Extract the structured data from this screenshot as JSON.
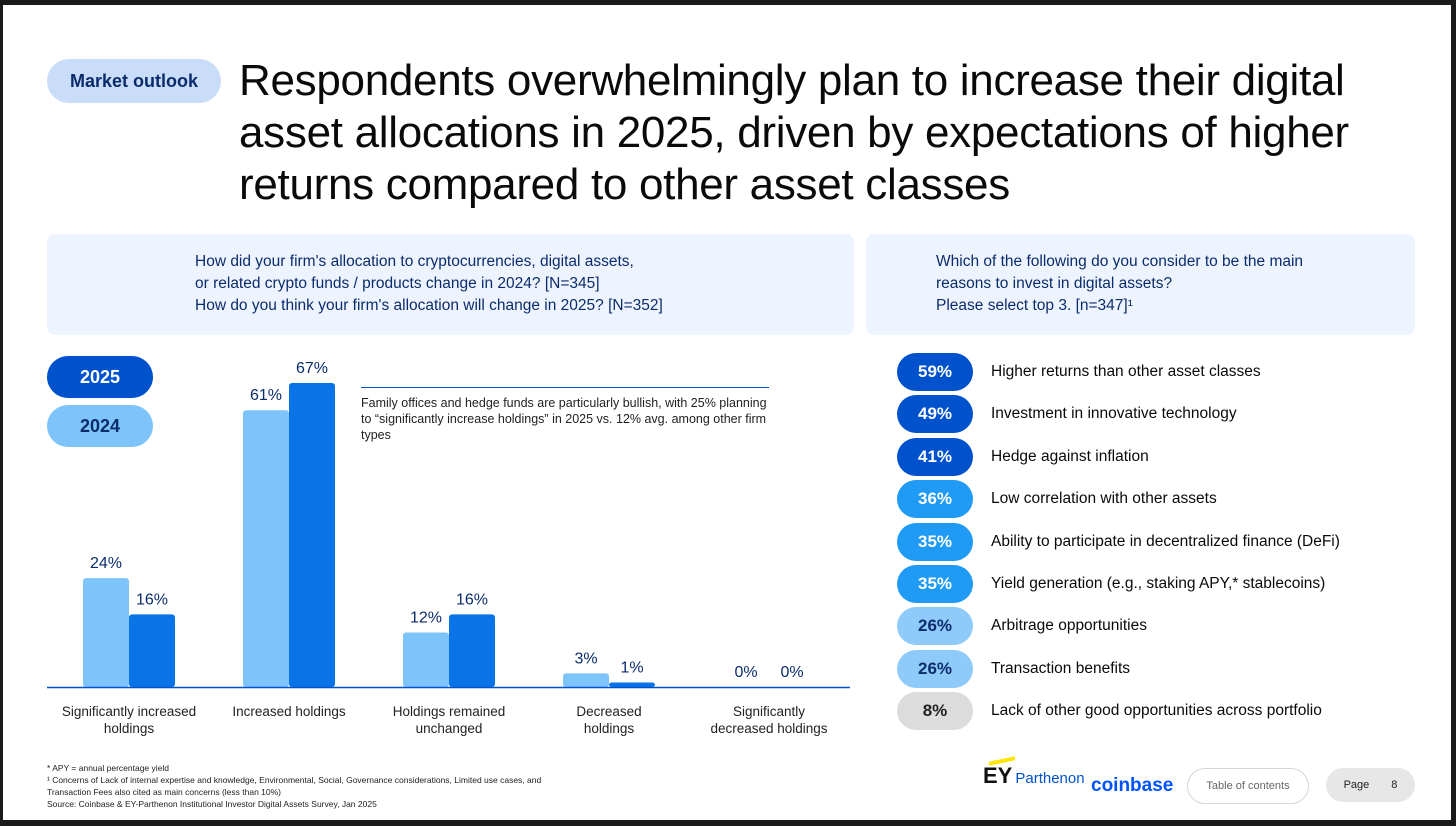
{
  "badge": "Market outlook",
  "headline": "Respondents overwhelmingly plan to increase their digital asset allocations in 2025, driven by expectations of higher returns compared to other asset classes",
  "left_question": {
    "lines": [
      "How did your firm's allocation to cryptocurrencies, digital assets,",
      "or related crypto funds / products change in 2024? [N=345]",
      "How do you think your firm's allocation will change in 2025? [N=352]"
    ]
  },
  "right_question": {
    "lines": [
      "Which of the following do you consider to be the main",
      "reasons to invest in digital assets?",
      "Please select top 3. [n=347]¹"
    ]
  },
  "legend": {
    "y2025": "2025",
    "y2024": "2024"
  },
  "annotation": "Family offices and hedge funds are particularly bullish, with 25% planning to “significantly increase holdings” in 2025 vs. 12% avg. among other firm types",
  "colors": {
    "c2024": "#7cc4fa",
    "c2025": "#0a73e6",
    "axis": "#0052cc",
    "label": "#0b2c6b"
  },
  "chart_data": [
    {
      "type": "bar",
      "categories": [
        [
          "Significantly increased",
          "holdings"
        ],
        [
          "Increased holdings"
        ],
        [
          "Holdings remained",
          "unchanged"
        ],
        [
          "Decreased",
          "holdings"
        ],
        [
          "Significantly",
          "decreased holdings"
        ]
      ],
      "series": [
        {
          "name": "2024",
          "values": [
            24,
            61,
            12,
            3,
            0
          ],
          "color": "#7cc4fa"
        },
        {
          "name": "2025",
          "values": [
            16,
            67,
            16,
            1,
            0
          ],
          "color": "#0a73e6"
        }
      ],
      "data_labels": [
        [
          "24%",
          "61%",
          "12%",
          "3%",
          "0%"
        ],
        [
          "16%",
          "67%",
          "16%",
          "1%",
          "0%"
        ]
      ],
      "ylim": [
        0,
        67
      ],
      "grid": false,
      "legend_position": "top-left"
    },
    {
      "type": "table",
      "rows": [
        {
          "value": 59,
          "label": "59%",
          "text": "Higher returns than other asset classes",
          "color": "#0052cc",
          "text_color": "#ffffff"
        },
        {
          "value": 49,
          "label": "49%",
          "text": "Investment in innovative technology",
          "color": "#0052cc",
          "text_color": "#ffffff"
        },
        {
          "value": 41,
          "label": "41%",
          "text": "Hedge against inflation",
          "color": "#0052cc",
          "text_color": "#ffffff"
        },
        {
          "value": 36,
          "label": "36%",
          "text": "Low correlation with other assets",
          "color": "#1f9bf5",
          "text_color": "#ffffff"
        },
        {
          "value": 35,
          "label": "35%",
          "text": "Ability to participate in decentralized finance (DeFi)",
          "color": "#1f9bf5",
          "text_color": "#ffffff"
        },
        {
          "value": 35,
          "label": "35%",
          "text": "Yield generation (e.g., staking APY,* stablecoins)",
          "color": "#1f9bf5",
          "text_color": "#ffffff"
        },
        {
          "value": 26,
          "label": "26%",
          "text": "Arbitrage opportunities",
          "color": "#8ecbfb",
          "text_color": "#0b2c6b"
        },
        {
          "value": 26,
          "label": "26%",
          "text": "Transaction benefits",
          "color": "#8ecbfb",
          "text_color": "#0b2c6b"
        },
        {
          "value": 8,
          "label": "8%",
          "text": "Lack of other good opportunities across portfolio",
          "color": "#dcdcdc",
          "text_color": "#222222"
        }
      ]
    }
  ],
  "footnotes": [
    "* APY = annual percentage yield",
    "¹ Concerns of Lack of internal expertise and knowledge, Environmental, Social, Governance considerations, Limited use cases, and",
    "Transaction Fees also cited as main concerns (less than 10%)",
    "Source: Coinbase & EY-Parthenon Institutional Investor Digital Assets Survey, Jan 2025"
  ],
  "logos": {
    "ey": "EY",
    "parthenon": "Parthenon",
    "coinbase": "coinbase"
  },
  "nav": {
    "toc": "Table of contents",
    "page_label": "Page",
    "page_number": "8"
  }
}
